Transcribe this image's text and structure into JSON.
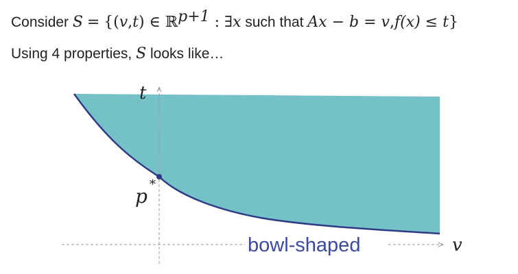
{
  "header": {
    "line1": {
      "prefix": "Consider",
      "S": "S",
      "eq1": "=",
      "set_open": "{(",
      "v": "v",
      "comma": ",",
      "t": "t",
      "set_close_in": ") ∈ ℝ",
      "exp": "p+1",
      "colon_exists": " : ∃",
      "x": "x",
      "such_that": " such that ",
      "Ax_b": "Ax − b",
      "eq2": " = ",
      "v2": "v",
      "comma2": ",",
      "fx": "f(x)",
      "leq": " ≤ ",
      "t2": "t",
      "close": "}"
    },
    "line2": {
      "prefix": "Using 4 properties, ",
      "S": "S",
      "suffix": " looks like…"
    }
  },
  "diagram": {
    "t_axis_label": "t",
    "v_axis_label": "v",
    "point_label": "p",
    "point_sup": "*",
    "region_caption": "bowl-shaped",
    "colors": {
      "region_fill": "#75C1C8",
      "boundary": "#2E3A85",
      "caption": "#3B4AA0",
      "axis": "#9a9a9a"
    }
  }
}
